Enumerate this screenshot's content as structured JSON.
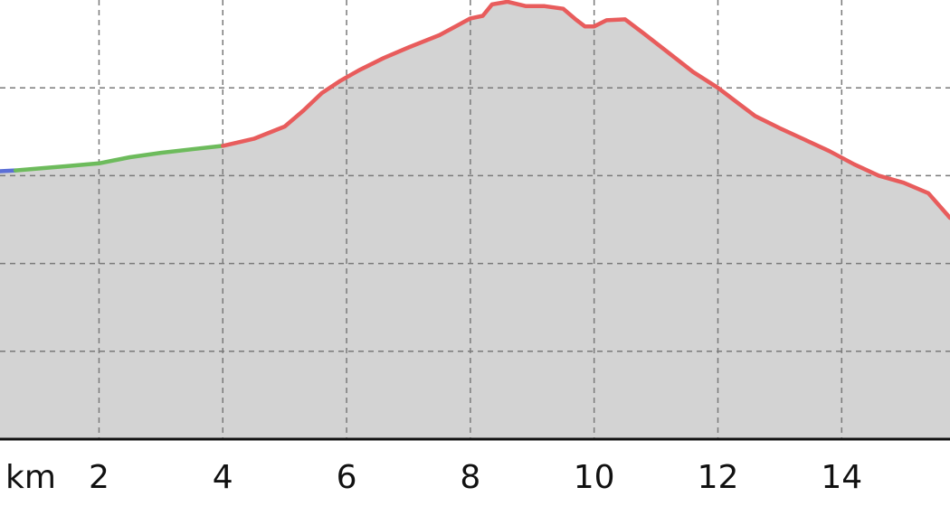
{
  "chart_data": {
    "type": "area",
    "title": "",
    "xlabel": "",
    "ylabel": "",
    "x_unit_label": "km",
    "x_ticks": [
      2,
      4,
      6,
      8,
      10,
      12,
      14
    ],
    "y_gridlines": [
      1,
      2,
      3,
      4
    ],
    "xlim": [
      0.4,
      15.75
    ],
    "ylim": [
      0,
      5
    ],
    "grid": true,
    "colors": {
      "fill": "#d3d3d3",
      "grid": "#7a7a7a",
      "axis": "#111111",
      "segment_blue": "#5b6fd6",
      "segment_green": "#6dbb5c",
      "segment_red": "#e85c5c"
    },
    "series": [
      {
        "color": "#5b6fd6",
        "x": [
          0.4,
          0.65
        ],
        "y": [
          3.05,
          3.06
        ]
      },
      {
        "color": "#6dbb5c",
        "x": [
          0.65,
          1.0,
          1.5,
          2.0,
          2.5,
          3.0,
          3.5,
          4.0
        ],
        "y": [
          3.06,
          3.08,
          3.11,
          3.14,
          3.21,
          3.26,
          3.3,
          3.34
        ]
      },
      {
        "color": "#e85c5c",
        "x": [
          4.0,
          4.5,
          5.0,
          5.3,
          5.6,
          5.9,
          6.2,
          6.6,
          7.0,
          7.5,
          8.0,
          8.2,
          8.35,
          8.6,
          8.9,
          9.2,
          9.5,
          9.7,
          9.85,
          10.0,
          10.2,
          10.5,
          10.8,
          11.2,
          11.6,
          12.0,
          12.3,
          12.6,
          13.0,
          13.4,
          13.8,
          14.2,
          14.6,
          15.0,
          15.4,
          15.75
        ],
        "y": [
          3.34,
          3.42,
          3.56,
          3.74,
          3.94,
          4.08,
          4.2,
          4.34,
          4.46,
          4.6,
          4.79,
          4.82,
          4.95,
          4.98,
          4.93,
          4.93,
          4.9,
          4.78,
          4.7,
          4.7,
          4.77,
          4.78,
          4.62,
          4.4,
          4.18,
          4.0,
          3.84,
          3.68,
          3.54,
          3.41,
          3.28,
          3.13,
          3.0,
          2.92,
          2.8,
          2.52
        ]
      }
    ]
  }
}
